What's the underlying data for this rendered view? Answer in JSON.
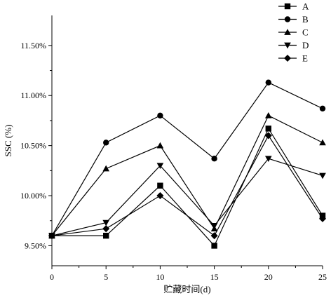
{
  "chart_data": {
    "type": "line",
    "title": "",
    "xlabel": "贮藏时间(d)",
    "ylabel": "SSC (%)",
    "x": [
      0,
      5,
      10,
      15,
      20,
      25
    ],
    "x_ticks": [
      "0",
      "5",
      "10",
      "15",
      "20",
      "25"
    ],
    "y_ticks": [
      "9.50%",
      "10.00%",
      "10.50%",
      "11.00%",
      "11.50%"
    ],
    "xlim": [
      0,
      25
    ],
    "ylim": [
      9.3,
      11.8
    ],
    "grid": false,
    "legend_position": "top-right",
    "series": [
      {
        "name": "A",
        "marker": "square",
        "values": [
          9.6,
          9.6,
          10.1,
          9.5,
          10.67,
          9.8
        ]
      },
      {
        "name": "B",
        "marker": "circle",
        "values": [
          9.6,
          10.53,
          10.8,
          10.37,
          11.13,
          10.87
        ]
      },
      {
        "name": "C",
        "marker": "triangle-up",
        "values": [
          9.6,
          10.27,
          10.5,
          9.67,
          10.8,
          10.53
        ]
      },
      {
        "name": "D",
        "marker": "triangle-down",
        "values": [
          9.6,
          9.73,
          10.3,
          9.7,
          10.37,
          10.2
        ]
      },
      {
        "name": "E",
        "marker": "diamond",
        "values": [
          9.6,
          9.67,
          10.0,
          9.6,
          10.6,
          9.77
        ]
      }
    ]
  }
}
